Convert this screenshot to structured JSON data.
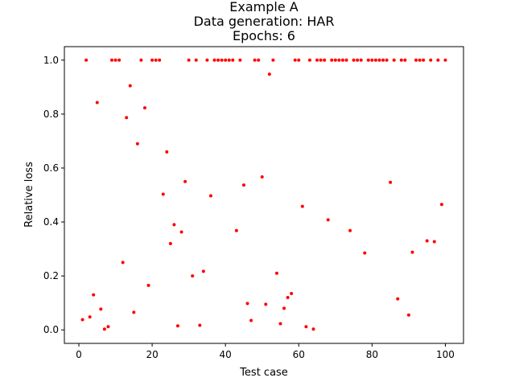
{
  "chart_data": {
    "type": "scatter",
    "title_lines": [
      "Example A",
      "Data generation: HAR",
      "Epochs: 6"
    ],
    "xlabel": "Test case",
    "ylabel": "Relative loss",
    "xlim": [
      -3.95,
      104.95
    ],
    "ylim": [
      -0.05,
      1.05
    ],
    "xticks": [
      0,
      20,
      40,
      60,
      80,
      100
    ],
    "xtick_labels": [
      "0",
      "20",
      "40",
      "60",
      "80",
      "100"
    ],
    "yticks": [
      0.0,
      0.2,
      0.4,
      0.6,
      0.8,
      1.0
    ],
    "ytick_labels": [
      "0.0",
      "0.2",
      "0.4",
      "0.6",
      "0.8",
      "1.0"
    ],
    "marker_color": "#ff0000",
    "grid": false,
    "x": [
      1,
      2,
      3,
      4,
      5,
      6,
      7,
      8,
      9,
      10,
      11,
      12,
      13,
      14,
      15,
      16,
      17,
      18,
      19,
      20,
      21,
      22,
      23,
      24,
      25,
      26,
      27,
      28,
      29,
      30,
      31,
      32,
      33,
      34,
      35,
      36,
      37,
      38,
      39,
      40,
      41,
      42,
      43,
      44,
      45,
      46,
      47,
      48,
      49,
      50,
      51,
      52,
      53,
      54,
      55,
      56,
      57,
      58,
      59,
      60,
      61,
      62,
      63,
      64,
      65,
      66,
      67,
      68,
      69,
      70,
      71,
      72,
      73,
      74,
      75,
      76,
      77,
      78,
      79,
      80,
      81,
      82,
      83,
      84,
      85,
      86,
      87,
      88,
      89,
      90,
      91,
      92,
      93,
      94,
      95,
      96,
      97,
      98,
      99,
      100
    ],
    "y": [
      0.038,
      1.0,
      0.048,
      0.13,
      0.843,
      0.077,
      0.003,
      0.012,
      1.0,
      1.0,
      1.0,
      0.25,
      0.787,
      0.905,
      0.065,
      0.69,
      1.0,
      0.823,
      0.165,
      1.0,
      1.0,
      1.0,
      0.503,
      0.66,
      0.32,
      0.39,
      0.015,
      0.363,
      0.55,
      1.0,
      0.2,
      1.0,
      0.017,
      0.217,
      1.0,
      0.497,
      1.0,
      1.0,
      1.0,
      1.0,
      1.0,
      1.0,
      0.368,
      1.0,
      0.537,
      0.098,
      0.035,
      1.0,
      1.0,
      0.567,
      0.095,
      0.948,
      1.0,
      0.21,
      0.023,
      0.08,
      0.12,
      0.135,
      1.0,
      1.0,
      0.458,
      0.012,
      1.0,
      0.003,
      1.0,
      1.0,
      1.0,
      0.408,
      1.0,
      1.0,
      1.0,
      1.0,
      1.0,
      0.368,
      1.0,
      1.0,
      1.0,
      0.285,
      1.0,
      1.0,
      1.0,
      1.0,
      1.0,
      1.0,
      0.547,
      1.0,
      0.115,
      1.0,
      1.0,
      0.055,
      0.288,
      1.0,
      1.0,
      1.0,
      0.33,
      1.0,
      0.327,
      1.0,
      0.465,
      1.0
    ]
  }
}
